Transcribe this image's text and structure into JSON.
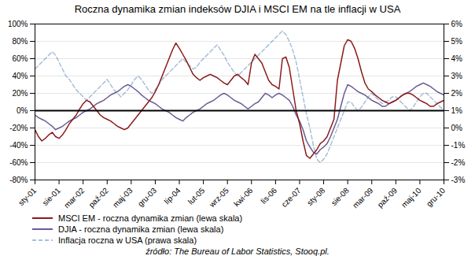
{
  "chart_data": {
    "type": "line",
    "title": "Roczna dynamika zmian indeksów DJIA i MSCI EM na tle inflacji w USA",
    "annotations": [
      "źródło: The Bureau of Labor Statistics, Stooq.pl."
    ],
    "categories": [
      "sty-01",
      null,
      null,
      null,
      null,
      null,
      null,
      "sie-01",
      null,
      null,
      null,
      null,
      null,
      null,
      "mar-02",
      null,
      null,
      null,
      null,
      null,
      null,
      "paź-02",
      null,
      null,
      null,
      null,
      null,
      null,
      "maj-03",
      null,
      null,
      null,
      null,
      null,
      null,
      "gru-03",
      null,
      null,
      null,
      null,
      null,
      null,
      "lip-04",
      null,
      null,
      null,
      null,
      null,
      null,
      "lut-05",
      null,
      null,
      null,
      null,
      null,
      null,
      "wrz-05",
      null,
      null,
      null,
      null,
      null,
      null,
      "kwi-06",
      null,
      null,
      null,
      null,
      null,
      null,
      "lis-06",
      null,
      null,
      null,
      null,
      null,
      null,
      "cze-07",
      null,
      null,
      null,
      null,
      null,
      null,
      "sty-08",
      null,
      null,
      null,
      null,
      null,
      null,
      "sie-08",
      null,
      null,
      null,
      null,
      null,
      null,
      "mar-09",
      null,
      null,
      null,
      null,
      null,
      null,
      "paź-09",
      null,
      null,
      null,
      null,
      null,
      null,
      "maj-10",
      null,
      null,
      null,
      null,
      null,
      null,
      "gru-10"
    ],
    "series": [
      {
        "name": "MSCI EM - roczna dynamika zmian (lewa skala)",
        "color": "#8B1A1A",
        "line_style": "solid",
        "values": [
          -0.22,
          -0.3,
          -0.35,
          -0.32,
          -0.28,
          -0.25,
          -0.3,
          -0.32,
          -0.28,
          -0.22,
          -0.15,
          -0.1,
          -0.05,
          0.02,
          0.08,
          0.12,
          0.1,
          0.05,
          0.0,
          -0.05,
          -0.08,
          -0.1,
          -0.12,
          -0.15,
          -0.18,
          -0.2,
          -0.22,
          -0.2,
          -0.15,
          -0.1,
          -0.05,
          0.0,
          0.05,
          0.1,
          0.15,
          0.22,
          0.3,
          0.4,
          0.5,
          0.6,
          0.7,
          0.78,
          0.72,
          0.65,
          0.58,
          0.5,
          0.42,
          0.38,
          0.35,
          0.38,
          0.4,
          0.42,
          0.4,
          0.38,
          0.35,
          0.32,
          0.3,
          0.35,
          0.4,
          0.42,
          0.38,
          0.35,
          0.3,
          0.55,
          0.65,
          0.6,
          0.55,
          0.45,
          0.35,
          0.3,
          0.28,
          0.25,
          0.6,
          0.62,
          0.5,
          0.25,
          0.0,
          -0.15,
          -0.35,
          -0.52,
          -0.55,
          -0.5,
          -0.45,
          -0.38,
          -0.35,
          -0.3,
          -0.2,
          -0.1,
          0.35,
          0.55,
          0.75,
          0.82,
          0.8,
          0.72,
          0.6,
          0.45,
          0.32,
          0.25,
          0.22,
          0.18,
          0.15,
          0.12,
          0.1,
          0.08,
          0.1,
          0.12,
          0.15,
          0.18,
          0.2,
          0.2,
          0.18,
          0.15,
          0.12,
          0.1,
          0.08,
          0.05,
          0.05,
          0.08,
          0.1,
          0.12
        ]
      },
      {
        "name": "DJIA - roczna dynamika zmian (lewa skala)",
        "color": "#6B5B95",
        "line_style": "solid",
        "values": [
          -0.05,
          -0.08,
          -0.1,
          -0.12,
          -0.15,
          -0.18,
          -0.22,
          -0.2,
          -0.18,
          -0.15,
          -0.12,
          -0.1,
          -0.08,
          -0.05,
          -0.02,
          0.0,
          0.02,
          0.05,
          0.08,
          0.1,
          0.12,
          0.15,
          0.18,
          0.2,
          0.22,
          0.25,
          0.28,
          0.3,
          0.28,
          0.25,
          0.22,
          0.18,
          0.15,
          0.12,
          0.1,
          0.08,
          0.05,
          0.02,
          0.0,
          -0.02,
          -0.05,
          -0.08,
          -0.1,
          -0.12,
          -0.08,
          -0.05,
          -0.02,
          0.0,
          0.02,
          0.05,
          0.08,
          0.1,
          0.12,
          0.15,
          0.18,
          0.2,
          0.18,
          0.15,
          0.12,
          0.1,
          0.08,
          0.05,
          0.02,
          0.05,
          0.08,
          0.1,
          0.15,
          0.2,
          0.18,
          0.15,
          0.18,
          0.2,
          0.18,
          0.15,
          0.12,
          0.05,
          -0.05,
          -0.12,
          -0.22,
          -0.35,
          -0.42,
          -0.48,
          -0.5,
          -0.45,
          -0.42,
          -0.38,
          -0.3,
          -0.2,
          -0.1,
          0.05,
          0.2,
          0.3,
          0.28,
          0.25,
          0.22,
          0.2,
          0.18,
          0.15,
          0.12,
          0.1,
          0.08,
          0.05,
          0.05,
          0.08,
          0.1,
          0.12,
          0.15,
          0.18,
          0.2,
          0.22,
          0.25,
          0.28,
          0.3,
          0.32,
          0.3,
          0.28,
          0.25,
          0.22,
          0.2,
          0.18
        ]
      },
      {
        "name": "Inflacja roczna w USA (prawa skala)",
        "color": "#A8C0D8",
        "line_style": "dashed",
        "axis": "y2",
        "values": [
          0.034,
          0.036,
          0.038,
          0.04,
          0.042,
          0.044,
          0.042,
          0.038,
          0.034,
          0.03,
          0.028,
          0.025,
          0.022,
          0.02,
          0.018,
          0.016,
          0.018,
          0.02,
          0.022,
          0.024,
          0.026,
          0.028,
          0.025,
          0.022,
          0.02,
          0.018,
          0.02,
          0.022,
          0.025,
          0.028,
          0.03,
          0.028,
          0.025,
          0.022,
          0.02,
          0.022,
          0.025,
          0.028,
          0.03,
          0.032,
          0.034,
          0.036,
          0.038,
          0.04,
          0.038,
          0.036,
          0.034,
          0.035,
          0.038,
          0.04,
          0.042,
          0.044,
          0.046,
          0.048,
          0.045,
          0.042,
          0.038,
          0.035,
          0.032,
          0.03,
          0.032,
          0.034,
          0.036,
          0.038,
          0.04,
          0.042,
          0.044,
          0.046,
          0.048,
          0.05,
          0.052,
          0.054,
          0.056,
          0.054,
          0.05,
          0.045,
          0.038,
          0.028,
          0.018,
          0.008,
          0.0,
          -0.01,
          -0.018,
          -0.02,
          -0.018,
          -0.015,
          -0.01,
          -0.005,
          0.0,
          0.005,
          0.01,
          0.015,
          0.015,
          0.012,
          0.01,
          0.012,
          0.015,
          0.018,
          0.02,
          0.018,
          0.016,
          0.014,
          0.015,
          0.016,
          0.018,
          0.018,
          0.016,
          0.014,
          0.012,
          0.01,
          0.012,
          0.015,
          0.018,
          0.02,
          0.02,
          0.018,
          0.016,
          0.014,
          0.012,
          0.01
        ]
      }
    ],
    "ylim": [
      -0.8,
      1.0
    ],
    "yticks": [
      {
        "value": -0.8,
        "label": "-80%"
      },
      {
        "value": -0.6,
        "label": "-60%"
      },
      {
        "value": -0.4,
        "label": "-40%"
      },
      {
        "value": -0.2,
        "label": "-20%"
      },
      {
        "value": 0.0,
        "label": "0%"
      },
      {
        "value": 0.2,
        "label": "20%"
      },
      {
        "value": 0.4,
        "label": "40%"
      },
      {
        "value": 0.6,
        "label": "60%"
      },
      {
        "value": 0.8,
        "label": "80%"
      },
      {
        "value": 1.0,
        "label": "100%"
      }
    ],
    "y2lim": [
      -0.03,
      0.06
    ],
    "y2ticks": [
      {
        "value": -0.03,
        "label": "-3%"
      },
      {
        "value": -0.02,
        "label": "-2%"
      },
      {
        "value": -0.01,
        "label": "-1%"
      },
      {
        "value": 0.0,
        "label": "0%"
      },
      {
        "value": 0.01,
        "label": "1%"
      },
      {
        "value": 0.02,
        "label": "2%"
      },
      {
        "value": 0.03,
        "label": "3%"
      },
      {
        "value": 0.04,
        "label": "4%"
      },
      {
        "value": 0.05,
        "label": "5%"
      },
      {
        "value": 0.06,
        "label": "6%"
      }
    ],
    "grid": true,
    "legend": "bottom"
  }
}
